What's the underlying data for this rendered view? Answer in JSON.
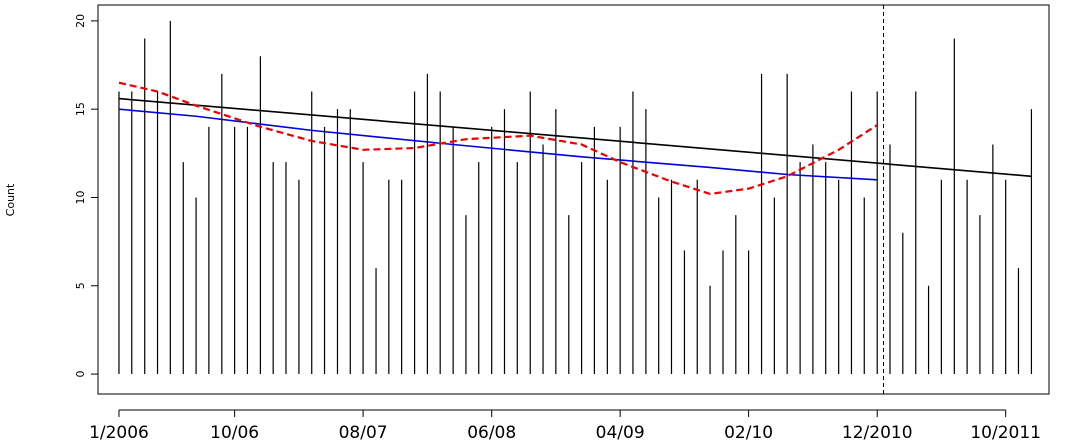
{
  "chart_data": {
    "type": "line",
    "y_label": "Count",
    "xlim": [
      2005.864,
      2012.031
    ],
    "ylim": [
      -1.13,
      20.9
    ],
    "yticks": [
      0,
      5,
      10,
      15,
      20
    ],
    "xticks": [
      {
        "value": 2006,
        "label": "1/2006"
      },
      {
        "value": 2006.75,
        "label": "10/06"
      },
      {
        "value": 2007.583,
        "label": "08/07"
      },
      {
        "value": 2008.417,
        "label": "06/08"
      },
      {
        "value": 2009.25,
        "label": "04/09"
      },
      {
        "value": 2010.083,
        "label": "02/10"
      },
      {
        "value": 2010.917,
        "label": "12/2010"
      },
      {
        "value": 2011.75,
        "label": "10/2011"
      }
    ],
    "vline": 2010.958,
    "series": [
      {
        "kind": "spikes",
        "color": "#000000",
        "x": [
          2006,
          2006.083,
          2006.167,
          2006.25,
          2006.333,
          2006.417,
          2006.5,
          2006.583,
          2006.667,
          2006.75,
          2006.833,
          2006.917,
          2007,
          2007.083,
          2007.167,
          2007.25,
          2007.333,
          2007.417,
          2007.5,
          2007.583,
          2007.667,
          2007.75,
          2007.833,
          2007.917,
          2008,
          2008.083,
          2008.167,
          2008.25,
          2008.333,
          2008.417,
          2008.5,
          2008.583,
          2008.667,
          2008.75,
          2008.833,
          2008.917,
          2009,
          2009.083,
          2009.167,
          2009.25,
          2009.333,
          2009.417,
          2009.5,
          2009.583,
          2009.667,
          2009.75,
          2009.833,
          2009.917,
          2010,
          2010.083,
          2010.167,
          2010.25,
          2010.333,
          2010.417,
          2010.5,
          2010.583,
          2010.667,
          2010.75,
          2010.833,
          2010.917,
          2011,
          2011.083,
          2011.167,
          2011.25,
          2011.333,
          2011.417,
          2011.5,
          2011.583,
          2011.667,
          2011.75,
          2011.833,
          2011.917
        ],
        "values": [
          16,
          16,
          19,
          16,
          20,
          12,
          10,
          14,
          17,
          14,
          14,
          18,
          12,
          12,
          11,
          16,
          14,
          15,
          15,
          12,
          6,
          11,
          11,
          16,
          17,
          16,
          14,
          9,
          12,
          14,
          15,
          12,
          16,
          13,
          15,
          9,
          12,
          14,
          11,
          14,
          16,
          15,
          10,
          11,
          7,
          11,
          5,
          7,
          9,
          7,
          17,
          10,
          17,
          12,
          13,
          12,
          11,
          16,
          10,
          16,
          13,
          8,
          16,
          5,
          11,
          19,
          11,
          9,
          13,
          11,
          6,
          15
        ]
      },
      {
        "kind": "line",
        "color": "#000000",
        "x": [
          2006,
          2011.917
        ],
        "values": [
          15.6,
          11.2
        ]
      },
      {
        "kind": "line",
        "color": "#0000dd",
        "x": [
          2006,
          2006.5,
          2007.25,
          2008.167,
          2009,
          2009.833,
          2010.333,
          2010.917
        ],
        "values": [
          15.0,
          14.6,
          13.8,
          13.0,
          12.3,
          11.7,
          11.3,
          11.0
        ]
      },
      {
        "kind": "dashed",
        "color": "#ee0000",
        "x": [
          2006,
          2006.25,
          2006.5,
          2006.917,
          2007.25,
          2007.583,
          2007.917,
          2008.25,
          2008.667,
          2009,
          2009.25,
          2009.583,
          2009.833,
          2010.083,
          2010.333,
          2010.667,
          2010.917
        ],
        "values": [
          16.5,
          16.0,
          15.2,
          14.0,
          13.2,
          12.7,
          12.8,
          13.3,
          13.5,
          13.0,
          12.0,
          10.9,
          10.2,
          10.5,
          11.2,
          12.7,
          14.1
        ]
      }
    ]
  }
}
